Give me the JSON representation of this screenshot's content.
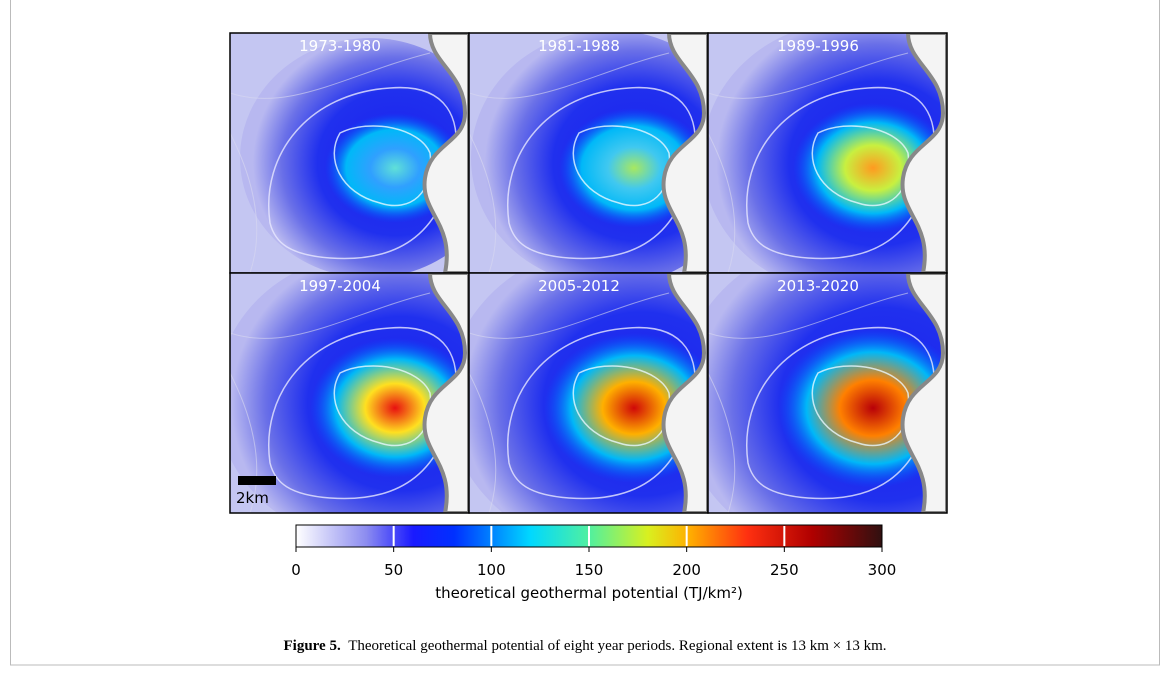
{
  "figure": {
    "panels": [
      "1973-1980",
      "1981-1988",
      "1989-1996",
      "1997-2004",
      "2005-2012",
      "2013-2020"
    ],
    "scale_bar": "2km",
    "colorbar": {
      "label": "theoretical geothermal potential (TJ/km²)",
      "lim": [
        0,
        300
      ],
      "ticks": [
        0,
        50,
        100,
        150,
        200,
        250,
        300
      ]
    },
    "caption": {
      "label": "Figure 5.",
      "text": "Theoretical geothermal potential of eight year periods. Regional extent is 13 km × 13 km."
    }
  }
}
